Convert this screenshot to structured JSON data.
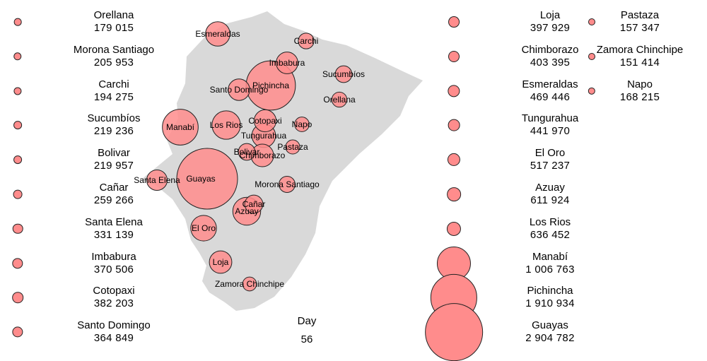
{
  "map": {
    "fill_color": "#d9d9d9",
    "bubble_color": "#ff8c8c",
    "bubble_stroke": "#222222",
    "provinces": [
      {
        "name": "Esmeraldas",
        "value": 469446
      },
      {
        "name": "Carchi",
        "value": 194275
      },
      {
        "name": "Imbabura",
        "value": 370506
      },
      {
        "name": "Sucumbíos",
        "value": 219236
      },
      {
        "name": "Santo Domingo",
        "value": 364849
      },
      {
        "name": "Pichincha",
        "value": 1910934
      },
      {
        "name": "Orellana",
        "value": 179015
      },
      {
        "name": "Cotopaxi",
        "value": 382203
      },
      {
        "name": "Manabí",
        "value": 1006763
      },
      {
        "name": "Los Rios",
        "value": 636452
      },
      {
        "name": "Napo",
        "value": 168215
      },
      {
        "name": "Tungurahua",
        "value": 441970
      },
      {
        "name": "Pastaza",
        "value": 157347
      },
      {
        "name": "Bolivar",
        "value": 219957
      },
      {
        "name": "Chimborazo",
        "value": 403395
      },
      {
        "name": "Santa Elena",
        "value": 331139
      },
      {
        "name": "Guayas",
        "value": 2904782
      },
      {
        "name": "Morona Santiago",
        "value": 205953
      },
      {
        "name": "Cañar",
        "value": 259266
      },
      {
        "name": "Azuay",
        "value": 611924
      },
      {
        "name": "El Oro",
        "value": 517237
      },
      {
        "name": "Loja",
        "value": 397929
      },
      {
        "name": "Zamora Chinchipe",
        "value": 151414
      }
    ]
  },
  "legend": {
    "columns": [
      [
        {
          "name": "Orellana",
          "value": "179 015"
        },
        {
          "name": "Morona Santiago",
          "value": "205 953"
        },
        {
          "name": "Carchi",
          "value": "194 275"
        },
        {
          "name": "Sucumbíos",
          "value": "219 236"
        },
        {
          "name": "Bolivar",
          "value": "219 957"
        },
        {
          "name": "Cañar",
          "value": "259 266"
        },
        {
          "name": "Santa Elena",
          "value": "331 139"
        },
        {
          "name": "Imbabura",
          "value": "370 506"
        },
        {
          "name": "Cotopaxi",
          "value": "382 203"
        },
        {
          "name": "Santo Domingo",
          "value": "364 849"
        }
      ],
      [
        {
          "name": "Loja",
          "value": "397 929"
        },
        {
          "name": "Chimborazo",
          "value": "403 395"
        },
        {
          "name": "Esmeraldas",
          "value": "469 446"
        },
        {
          "name": "Tungurahua",
          "value": "441 970"
        },
        {
          "name": "El Oro",
          "value": "517 237"
        },
        {
          "name": "Azuay",
          "value": "611 924"
        },
        {
          "name": "Los Rios",
          "value": "636 452"
        },
        {
          "name": "Manabí",
          "value": "1 006 763"
        },
        {
          "name": "Pichincha",
          "value": "1 910 934"
        },
        {
          "name": "Guayas",
          "value": "2 904 782"
        }
      ],
      [
        {
          "name": "Pastaza",
          "value": "157 347"
        },
        {
          "name": "Zamora Chinchipe",
          "value": "151 414"
        },
        {
          "name": "Napo",
          "value": "168 215"
        }
      ]
    ]
  },
  "day": {
    "title": "Day",
    "value": "56"
  }
}
